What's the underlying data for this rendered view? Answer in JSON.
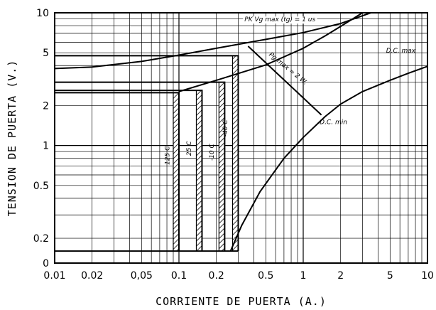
{
  "chart_data": {
    "type": "line",
    "xlabel": "CORRIENTE DE PUERTA (A.)",
    "ylabel": "TENSION DE PUERTA (V.)",
    "xscale": "log",
    "yscale": "log",
    "xlim": [
      0.01,
      10
    ],
    "ylim": [
      0.13,
      10
    ],
    "x_ticks": [
      {
        "v": 0.01,
        "label": "0.01"
      },
      {
        "v": 0.02,
        "label": "0.02"
      },
      {
        "v": 0.05,
        "label": "0,05"
      },
      {
        "v": 0.1,
        "label": "0.1"
      },
      {
        "v": 0.2,
        "label": "0.2"
      },
      {
        "v": 0.5,
        "label": "0.5"
      },
      {
        "v": 1,
        "label": "1"
      },
      {
        "v": 2,
        "label": "2"
      },
      {
        "v": 5,
        "label": "5"
      },
      {
        "v": 10,
        "label": "10"
      }
    ],
    "y_ticks": [
      {
        "v": 0.13,
        "label": "0"
      },
      {
        "v": 0.2,
        "label": "0.2"
      },
      {
        "v": 0.5,
        "label": "0.5"
      },
      {
        "v": 1,
        "label": "1"
      },
      {
        "v": 2,
        "label": "2"
      },
      {
        "v": 5,
        "label": "5"
      },
      {
        "v": 10,
        "label": "10"
      }
    ],
    "grid": true,
    "series": [
      {
        "name": "D.C. max",
        "x": [
          0.01,
          0.02,
          0.05,
          0.1,
          0.2,
          0.5,
          1,
          2,
          3.5
        ],
        "y": [
          3.8,
          3.9,
          4.3,
          4.8,
          5.4,
          6.3,
          7.1,
          8.3,
          10
        ]
      },
      {
        "name": "D.C. min",
        "x": [
          0.26,
          0.32,
          0.45,
          0.7,
          1,
          1.5,
          2,
          3,
          5,
          7,
          10
        ],
        "y": [
          0.16,
          0.25,
          0.45,
          0.8,
          1.15,
          1.65,
          2.05,
          2.55,
          3.1,
          3.5,
          3.95
        ]
      },
      {
        "x": [
          0.1,
          0.2,
          0.5,
          1,
          1.5,
          2,
          3
        ],
        "y": [
          2.55,
          3.1,
          4.05,
          5.4,
          6.7,
          7.9,
          10
        ]
      },
      {
        "name": "Pg max = 2 W.",
        "x": [
          0.36,
          1.4
        ],
        "y": [
          5.6,
          1.7
        ]
      }
    ],
    "temperature_boxes": [
      {
        "name": "125 C",
        "x": 0.09,
        "y": 2.5
      },
      {
        "name": "25 C",
        "x": 0.138,
        "y": 2.6
      },
      {
        "name": "-10 C",
        "x": 0.21,
        "y": 3.0
      },
      {
        "name": "-40 C",
        "x": 0.27,
        "y": 4.75
      }
    ],
    "box_baseline_y": 0.16,
    "annotations": [
      {
        "text": "PK Vg max (tg) = 1 us",
        "x": 0.65,
        "y": 8.6
      },
      {
        "text": "Pg max = 2 W.",
        "x": 0.74,
        "y": 3.7
      },
      {
        "text": "D.C. max",
        "x": 6.1,
        "y": 5.0
      },
      {
        "text": "D.C. min",
        "x": 1.75,
        "y": 1.45
      },
      {
        "text": "125 C",
        "x": 0.084,
        "y": 0.84
      },
      {
        "text": "25 C",
        "x": 0.125,
        "y": 0.95
      },
      {
        "text": "-10 C",
        "x": 0.19,
        "y": 0.89
      },
      {
        "text": "-40 C",
        "x": 0.245,
        "y": 1.35
      }
    ]
  }
}
